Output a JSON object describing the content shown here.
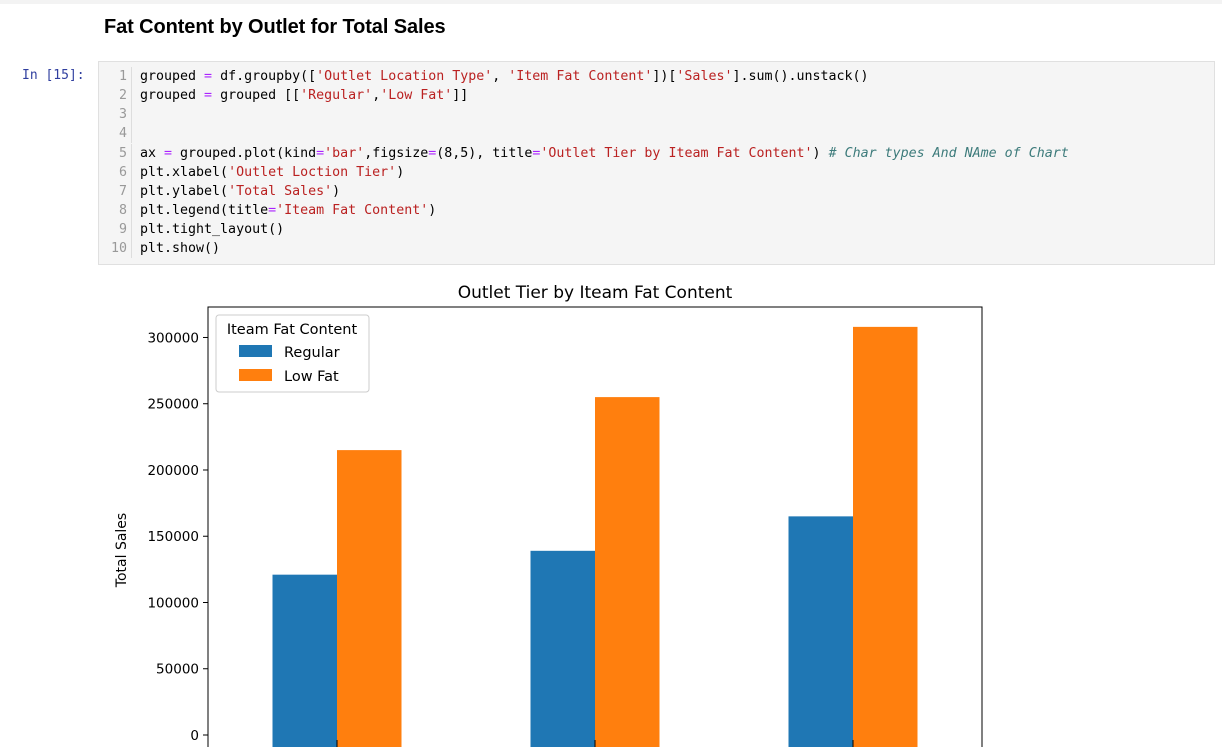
{
  "markdown": {
    "heading": "Fat Content by Outlet for Total Sales"
  },
  "cell": {
    "prompt": "In [15]:",
    "lines": [
      {
        "num": "1",
        "text": "grouped = df.groupby(['Outlet Location Type', 'Item Fat Content'])['Sales'].sum().unstack()"
      },
      {
        "num": "2",
        "text": "grouped = grouped [['Regular','Low Fat']]"
      },
      {
        "num": "3",
        "text": ""
      },
      {
        "num": "4",
        "text": ""
      },
      {
        "num": "5",
        "text": "ax = grouped.plot(kind='bar',figsize=(8,5), title='Outlet Tier by Iteam Fat Content') # Char types And NAme of Chart"
      },
      {
        "num": "6",
        "text": "plt.xlabel('Outlet Loction Tier')"
      },
      {
        "num": "7",
        "text": "plt.ylabel('Total Sales')"
      },
      {
        "num": "8",
        "text": "plt.legend(title='Iteam Fat Content')"
      },
      {
        "num": "9",
        "text": "plt.tight_layout()"
      },
      {
        "num": "10",
        "text": "plt.show()"
      }
    ]
  },
  "colors": {
    "regular": "#1f77b4",
    "low_fat": "#ff7f0e"
  },
  "chart_data": {
    "type": "bar",
    "title": "Outlet Tier by Iteam Fat Content",
    "xlabel": "",
    "ylabel": "Total Sales",
    "categories": [
      "",
      "",
      ""
    ],
    "series": [
      {
        "name": "Regular",
        "values": [
          121000,
          139000,
          165000
        ]
      },
      {
        "name": "Low Fat",
        "values": [
          215000,
          255000,
          308000
        ]
      }
    ],
    "yticks": [
      "0",
      "50000",
      "100000",
      "150000",
      "200000",
      "250000",
      "300000"
    ],
    "ylim": [
      0,
      323000
    ],
    "legend": {
      "title": "Iteam Fat Content",
      "placement": "top-left"
    },
    "grid": false
  }
}
